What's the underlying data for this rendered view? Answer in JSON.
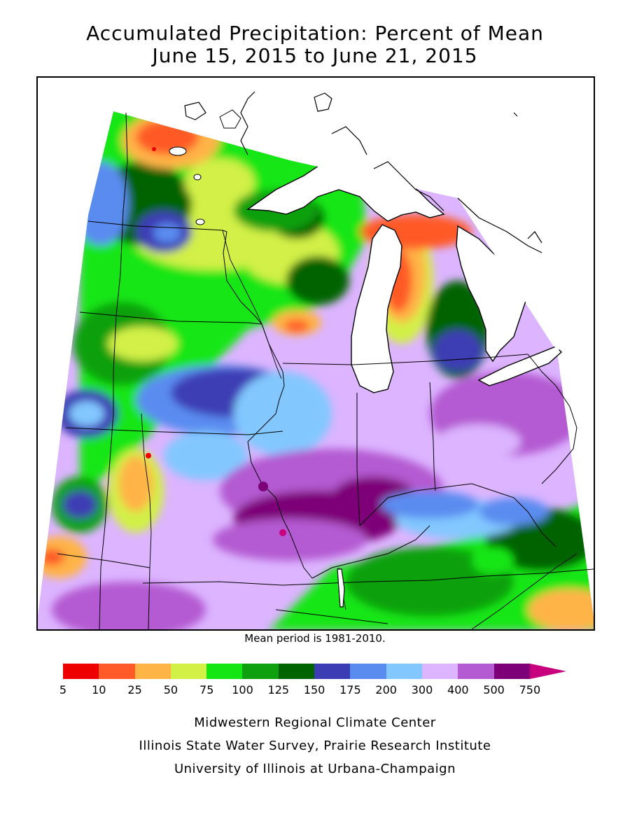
{
  "title": {
    "line1": "Accumulated Precipitation: Percent of Mean",
    "line2": "June 15, 2015 to June 21, 2015"
  },
  "note": "Mean period is 1981-2010.",
  "legend": {
    "bins": [
      {
        "lower": "5",
        "color": "#ee0000"
      },
      {
        "lower": "10",
        "color": "#ff5a28"
      },
      {
        "lower": "25",
        "color": "#ffb446"
      },
      {
        "lower": "50",
        "color": "#d2f046"
      },
      {
        "lower": "75",
        "color": "#14e614"
      },
      {
        "lower": "100",
        "color": "#0fa00f"
      },
      {
        "lower": "125",
        "color": "#006400"
      },
      {
        "lower": "150",
        "color": "#3c3cb4"
      },
      {
        "lower": "175",
        "color": "#5a8cf0"
      },
      {
        "lower": "200",
        "color": "#82c8ff"
      },
      {
        "lower": "300",
        "color": "#dcb4ff"
      },
      {
        "lower": "400",
        "color": "#b45ad2"
      },
      {
        "lower": "500",
        "color": "#7d0078"
      }
    ],
    "last_label": "750",
    "overflow_color": "#c8007d"
  },
  "credits": {
    "line1": "Midwestern Regional Climate Center",
    "line2": "Illinois State Water Survey, Prairie Research Institute",
    "line3": "University of Illinois at Urbana-Champaign"
  }
}
